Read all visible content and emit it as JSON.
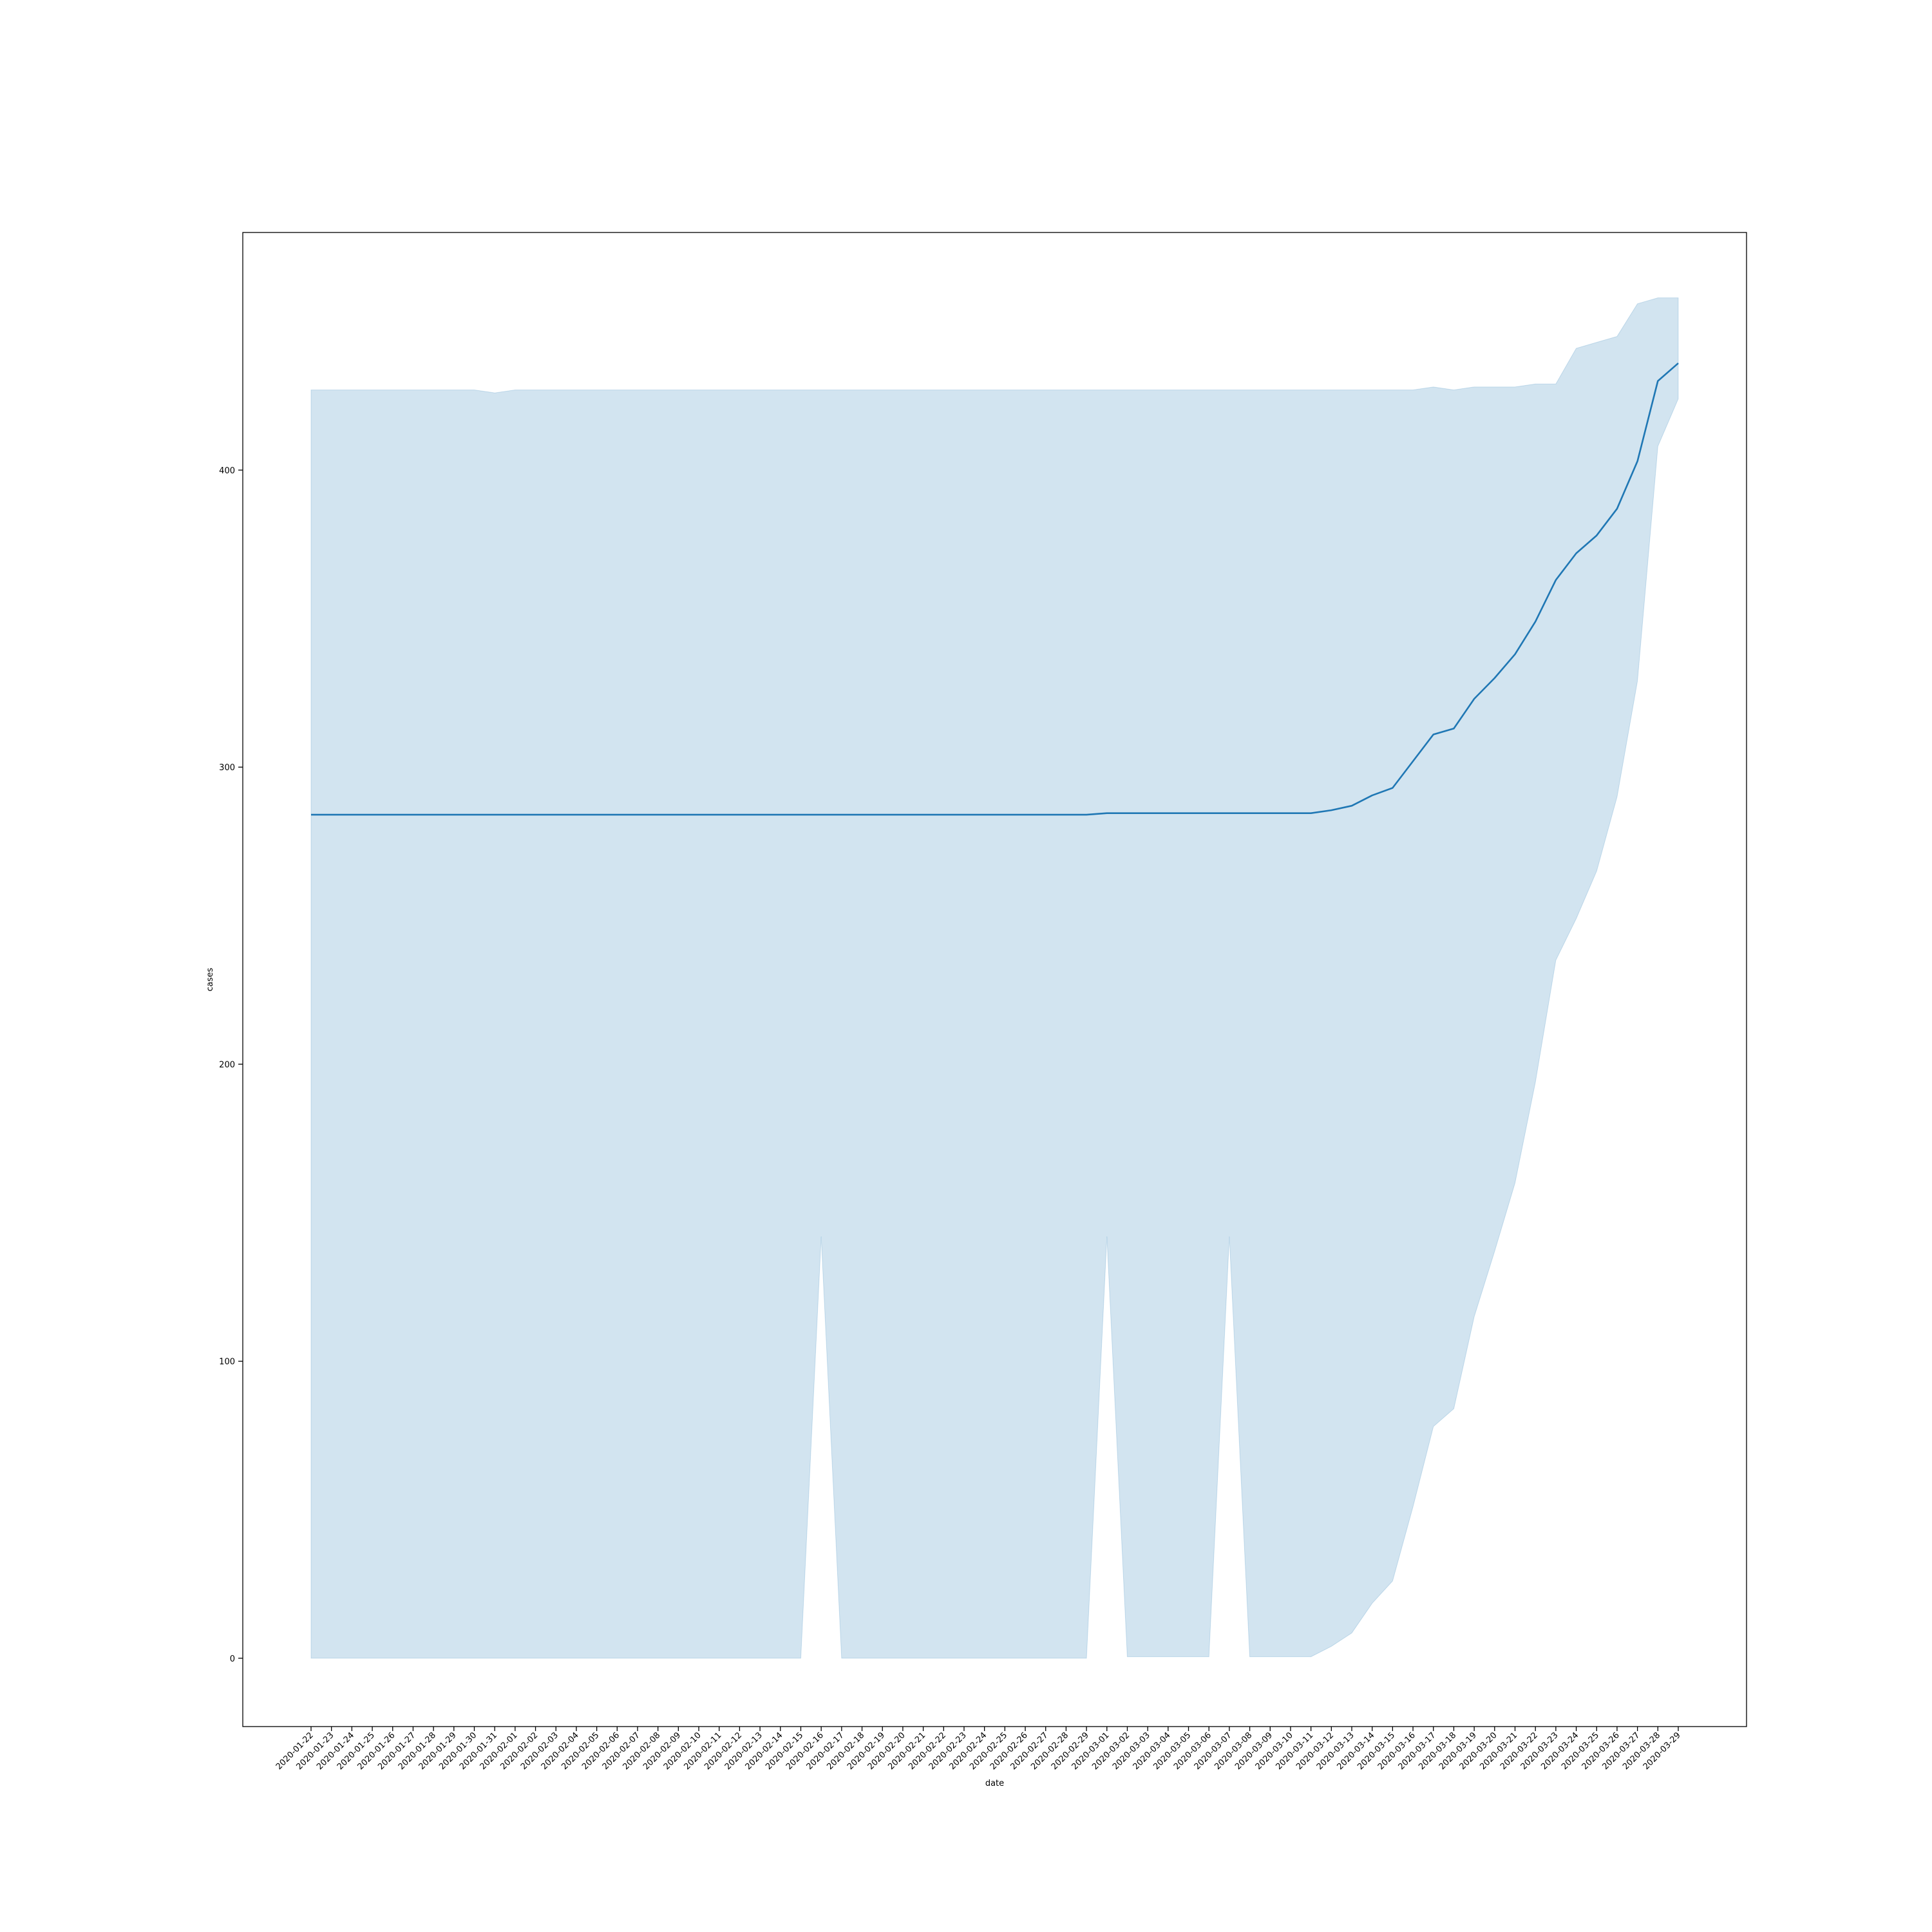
{
  "chart_data": {
    "type": "line",
    "xlabel": "date",
    "ylabel": "cases",
    "ylim": [
      -23,
      480
    ],
    "yticks": [
      0,
      100,
      200,
      300,
      400
    ],
    "grid": false,
    "legend": "none",
    "colors": {
      "line": "#1f77b4",
      "band": "#1f77b4",
      "band_opacity": 0.2
    },
    "x": [
      "2020-01-22",
      "2020-01-23",
      "2020-01-24",
      "2020-01-25",
      "2020-01-26",
      "2020-01-27",
      "2020-01-28",
      "2020-01-29",
      "2020-01-30",
      "2020-01-31",
      "2020-02-01",
      "2020-02-02",
      "2020-02-03",
      "2020-02-04",
      "2020-02-05",
      "2020-02-06",
      "2020-02-07",
      "2020-02-08",
      "2020-02-09",
      "2020-02-10",
      "2020-02-11",
      "2020-02-12",
      "2020-02-13",
      "2020-02-14",
      "2020-02-15",
      "2020-02-16",
      "2020-02-17",
      "2020-02-18",
      "2020-02-19",
      "2020-02-20",
      "2020-02-21",
      "2020-02-22",
      "2020-02-23",
      "2020-02-24",
      "2020-02-25",
      "2020-02-26",
      "2020-02-27",
      "2020-02-28",
      "2020-02-29",
      "2020-03-01",
      "2020-03-02",
      "2020-03-03",
      "2020-03-04",
      "2020-03-05",
      "2020-03-06",
      "2020-03-07",
      "2020-03-08",
      "2020-03-09",
      "2020-03-10",
      "2020-03-11",
      "2020-03-12",
      "2020-03-13",
      "2020-03-14",
      "2020-03-15",
      "2020-03-16",
      "2020-03-17",
      "2020-03-18",
      "2020-03-19",
      "2020-03-20",
      "2020-03-21",
      "2020-03-22",
      "2020-03-23",
      "2020-03-24",
      "2020-03-25",
      "2020-03-26",
      "2020-03-27",
      "2020-03-28",
      "2020-03-29"
    ],
    "series": [
      {
        "values": [
          284,
          284,
          284,
          284,
          284,
          284,
          284,
          284,
          284,
          284,
          284,
          284,
          284,
          284,
          284,
          284,
          284,
          284,
          284,
          284,
          284,
          284,
          284,
          284,
          284,
          284,
          284,
          284,
          284,
          284,
          284,
          284,
          284,
          284,
          284,
          284,
          284,
          284,
          284,
          284.5,
          284.5,
          284.5,
          284.5,
          284.5,
          284.5,
          284.5,
          284.5,
          284.5,
          284.5,
          284.5,
          285.5,
          287,
          290.5,
          293,
          302,
          311,
          313,
          323,
          330,
          338,
          349,
          363,
          372,
          378,
          387,
          403,
          430,
          436
        ],
        "lower": [
          0,
          0,
          0,
          0,
          0,
          0,
          0,
          0,
          0,
          0,
          0,
          0,
          0,
          0,
          0,
          0,
          0,
          0,
          0,
          0,
          0,
          0,
          0,
          0,
          0,
          142,
          0,
          0,
          0,
          0,
          0,
          0,
          0,
          0,
          0,
          0,
          0,
          0,
          0,
          142,
          0.5,
          0.5,
          0.5,
          0.5,
          0.5,
          142,
          0.5,
          0.5,
          0.5,
          0.5,
          4,
          8.5,
          18.5,
          26,
          51,
          78,
          84,
          115,
          137,
          160,
          194,
          235,
          249,
          265,
          290,
          329,
          408,
          424
        ],
        "upper": [
          427,
          427,
          427,
          427,
          427,
          427,
          427,
          427,
          427,
          426,
          427,
          427,
          427,
          427,
          427,
          427,
          427,
          427,
          427,
          427,
          427,
          427,
          427,
          427,
          427,
          427,
          427,
          427,
          427,
          427,
          427,
          427,
          427,
          427,
          427,
          427,
          427,
          427,
          427,
          427,
          427,
          427,
          427,
          427,
          427,
          427,
          427,
          427,
          427,
          427,
          427,
          427,
          427,
          427,
          427,
          428,
          427,
          428,
          428,
          428,
          429,
          429,
          441,
          443,
          445,
          456,
          458,
          458
        ]
      }
    ]
  }
}
